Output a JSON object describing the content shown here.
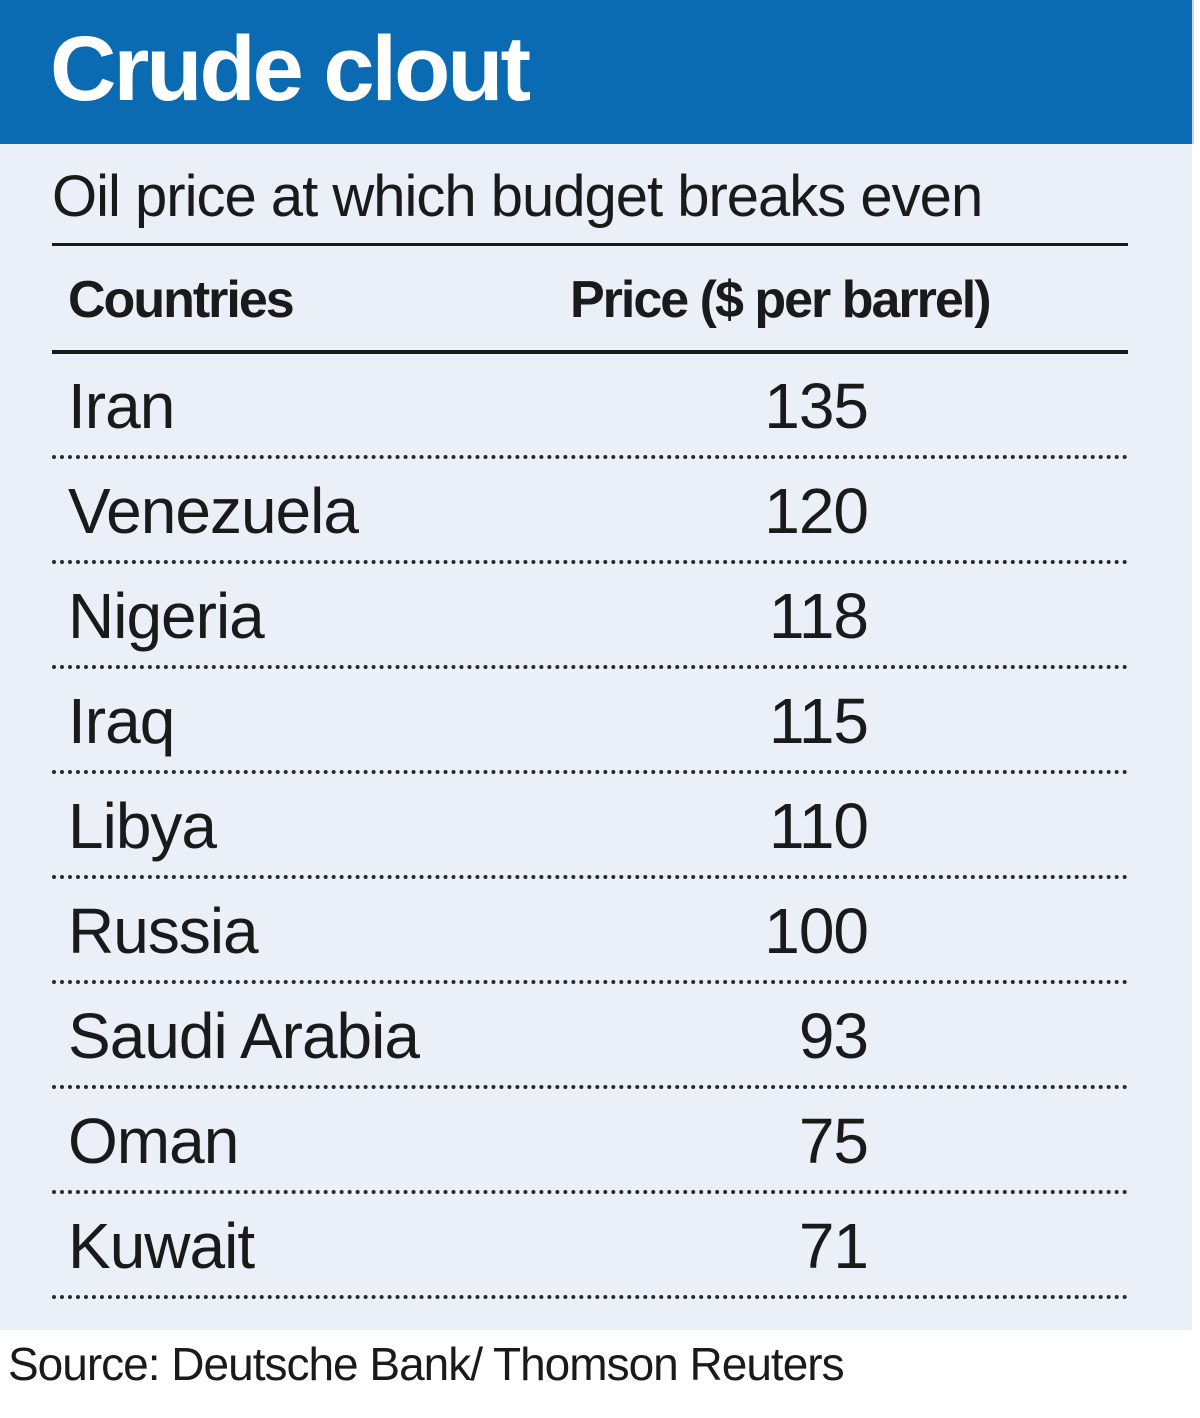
{
  "colors": {
    "title_bar": "#0a6ab2",
    "panel_background": "#eaeff8",
    "text": "#1a1a1a",
    "title_text": "#ffffff"
  },
  "chart_data": {
    "type": "table",
    "title": "Crude clout",
    "subtitle": "Oil price at which budget breaks even",
    "columns": [
      "Countries",
      "Price ($ per barrel)"
    ],
    "rows": [
      {
        "country": "Iran",
        "price": 135
      },
      {
        "country": "Venezuela",
        "price": 120
      },
      {
        "country": "Nigeria",
        "price": 118
      },
      {
        "country": "Iraq",
        "price": 115
      },
      {
        "country": "Libya",
        "price": 110
      },
      {
        "country": "Russia",
        "price": 100
      },
      {
        "country": "Saudi Arabia",
        "price": 93
      },
      {
        "country": "Oman",
        "price": 75
      },
      {
        "country": "Kuwait",
        "price": 71
      }
    ],
    "source": "Source: Deutsche Bank/ Thomson Reuters"
  }
}
